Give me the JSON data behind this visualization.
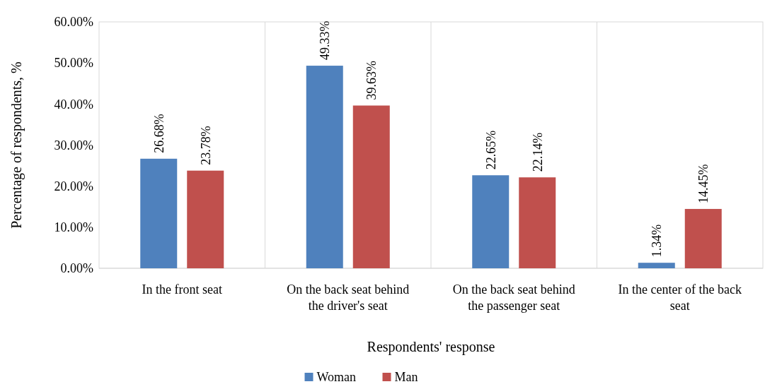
{
  "chart_data": {
    "type": "bar",
    "xlabel": "Respondents' response",
    "ylabel": "Percentage of respondents, %",
    "categories": [
      "In the front seat",
      "On the back seat behind the driver's seat",
      "On the back seat behind the passenger seat",
      "In the center of the back seat"
    ],
    "series": [
      {
        "name": "Woman",
        "color": "#4f81bd",
        "values": [
          26.68,
          49.33,
          22.65,
          1.34
        ],
        "value_labels": [
          "26.68%",
          "49.33%",
          "22.65%",
          "1.34%"
        ]
      },
      {
        "name": "Man",
        "color": "#c0504d",
        "values": [
          23.78,
          39.63,
          22.14,
          14.45
        ],
        "value_labels": [
          "23.78%",
          "39.63%",
          "22.14%",
          "14.45%"
        ]
      }
    ],
    "ylim": [
      0,
      60
    ],
    "yticks": [
      {
        "value": 0,
        "label": "0.00%"
      },
      {
        "value": 10,
        "label": "10.00%"
      },
      {
        "value": 20,
        "label": "20.00%"
      },
      {
        "value": 30,
        "label": "30.00%"
      },
      {
        "value": 40,
        "label": "40.00%"
      },
      {
        "value": 50,
        "label": "50.00%"
      },
      {
        "value": 60,
        "label": "60.00%"
      }
    ],
    "grid": "x",
    "legend": "bottom"
  }
}
